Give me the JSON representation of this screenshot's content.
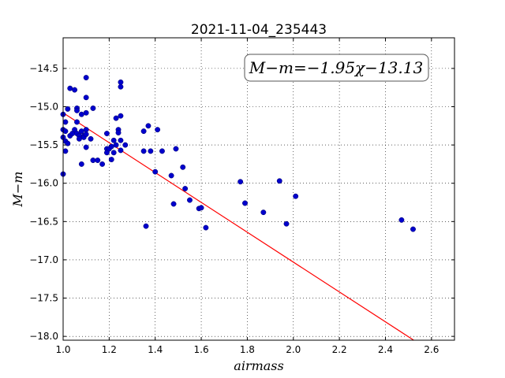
{
  "chart_data": {
    "type": "scatter",
    "title": "2021-11-04_235443",
    "xlabel": "airmass",
    "ylabel": "M−m",
    "xlim": [
      1.0,
      2.7
    ],
    "ylim": [
      -18.05,
      -14.1
    ],
    "xticks": [
      1.0,
      1.2,
      1.4,
      1.6,
      1.8,
      2.0,
      2.2,
      2.4,
      2.6
    ],
    "xtick_labels": [
      "1.0",
      "1.2",
      "1.4",
      "1.6",
      "1.8",
      "2.0",
      "2.2",
      "2.4",
      "2.6"
    ],
    "yticks": [
      -14.5,
      -15.0,
      -15.5,
      -16.0,
      -16.5,
      -17.0,
      -17.5,
      -18.0
    ],
    "ytick_labels": [
      "−14.5",
      "−15.0",
      "−15.5",
      "−16.0",
      "−16.5",
      "−17.0",
      "−17.5",
      "−18.0"
    ],
    "grid": true,
    "annotation": "M−m=−1.95χ−13.13",
    "fit": {
      "slope": -1.95,
      "intercept": -13.13,
      "color": "#ff0000"
    },
    "point_color": "#0000cc",
    "series": [
      {
        "points": [
          [
            1.0,
            -15.1
          ],
          [
            1.0,
            -15.3
          ],
          [
            1.0,
            -15.4
          ],
          [
            1.0,
            -15.88
          ],
          [
            1.01,
            -15.2
          ],
          [
            1.01,
            -15.32
          ],
          [
            1.01,
            -15.45
          ],
          [
            1.01,
            -15.58
          ],
          [
            1.02,
            -15.03
          ],
          [
            1.02,
            -15.48
          ],
          [
            1.03,
            -14.76
          ],
          [
            1.03,
            -15.38
          ],
          [
            1.04,
            -15.35
          ],
          [
            1.05,
            -14.78
          ],
          [
            1.05,
            -15.3
          ],
          [
            1.06,
            -15.02
          ],
          [
            1.06,
            -15.05
          ],
          [
            1.06,
            -15.2
          ],
          [
            1.06,
            -15.35
          ],
          [
            1.07,
            -15.38
          ],
          [
            1.07,
            -15.42
          ],
          [
            1.08,
            -15.1
          ],
          [
            1.08,
            -15.32
          ],
          [
            1.08,
            -15.75
          ],
          [
            1.09,
            -15.38
          ],
          [
            1.09,
            -15.4
          ],
          [
            1.1,
            -14.62
          ],
          [
            1.1,
            -14.88
          ],
          [
            1.1,
            -15.08
          ],
          [
            1.1,
            -15.3
          ],
          [
            1.1,
            -15.36
          ],
          [
            1.1,
            -15.53
          ],
          [
            1.12,
            -15.42
          ],
          [
            1.13,
            -15.02
          ],
          [
            1.13,
            -15.7
          ],
          [
            1.15,
            -15.7
          ],
          [
            1.17,
            -15.75
          ],
          [
            1.19,
            -15.35
          ],
          [
            1.19,
            -15.55
          ],
          [
            1.19,
            -15.6
          ],
          [
            1.2,
            -15.55
          ],
          [
            1.21,
            -15.52
          ],
          [
            1.21,
            -15.69
          ],
          [
            1.22,
            -15.44
          ],
          [
            1.22,
            -15.6
          ],
          [
            1.23,
            -15.15
          ],
          [
            1.23,
            -15.5
          ],
          [
            1.24,
            -15.3
          ],
          [
            1.24,
            -15.34
          ],
          [
            1.25,
            -14.68
          ],
          [
            1.25,
            -14.74
          ],
          [
            1.25,
            -15.12
          ],
          [
            1.25,
            -15.44
          ],
          [
            1.25,
            -15.57
          ],
          [
            1.27,
            -15.5
          ],
          [
            1.35,
            -15.32
          ],
          [
            1.35,
            -15.58
          ],
          [
            1.36,
            -16.56
          ],
          [
            1.37,
            -15.25
          ],
          [
            1.38,
            -15.58
          ],
          [
            1.4,
            -15.85
          ],
          [
            1.41,
            -15.3
          ],
          [
            1.43,
            -15.58
          ],
          [
            1.47,
            -15.9
          ],
          [
            1.48,
            -16.27
          ],
          [
            1.49,
            -15.55
          ],
          [
            1.52,
            -15.79
          ],
          [
            1.53,
            -16.07
          ],
          [
            1.55,
            -16.22
          ],
          [
            1.59,
            -16.33
          ],
          [
            1.6,
            -16.32
          ],
          [
            1.62,
            -16.58
          ],
          [
            1.77,
            -15.98
          ],
          [
            1.79,
            -16.26
          ],
          [
            1.87,
            -16.38
          ],
          [
            1.94,
            -15.97
          ],
          [
            1.97,
            -16.53
          ],
          [
            2.01,
            -16.17
          ],
          [
            2.47,
            -16.48
          ],
          [
            2.52,
            -16.6
          ]
        ]
      }
    ]
  }
}
